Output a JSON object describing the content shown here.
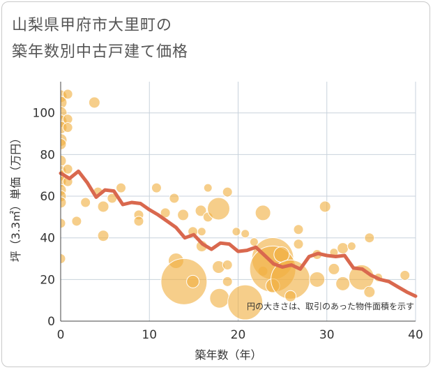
{
  "title_lines": [
    "山梨県甲府市大里町の",
    "築年数別中古戸建て価格"
  ],
  "chart_data": {
    "type": "scatter",
    "title": "山梨県甲府市大里町の築年数別中古戸建て価格",
    "xlabel": "築年数（年）",
    "ylabel": "坪（3.3㎡）単価（万円）",
    "xlim": [
      0,
      40
    ],
    "ylim": [
      0,
      115
    ],
    "xticks": [
      0,
      10,
      20,
      30,
      40
    ],
    "yticks": [
      0,
      20,
      40,
      60,
      80,
      100
    ],
    "grid": true,
    "annotation": "円の大きさは、取引のあった物件面積を示す",
    "colors": {
      "bubble": "#F0B042",
      "trend": "#D9684E",
      "grid": "#c8d2dc",
      "axis_text": "#333333"
    },
    "series": [
      {
        "kind": "bubbles",
        "points": [
          {
            "x": 0,
            "y": 108,
            "s": 9
          },
          {
            "x": 0,
            "y": 105,
            "s": 9
          },
          {
            "x": 0,
            "y": 100,
            "s": 9
          },
          {
            "x": 0,
            "y": 96,
            "s": 9
          },
          {
            "x": 0,
            "y": 93,
            "s": 9
          },
          {
            "x": 0,
            "y": 87,
            "s": 9
          },
          {
            "x": 0,
            "y": 85,
            "s": 8
          },
          {
            "x": 0,
            "y": 77,
            "s": 8
          },
          {
            "x": 0,
            "y": 72,
            "s": 8
          },
          {
            "x": 0,
            "y": 70,
            "s": 8
          },
          {
            "x": 0,
            "y": 67,
            "s": 8
          },
          {
            "x": 0,
            "y": 63,
            "s": 8
          },
          {
            "x": 0,
            "y": 60,
            "s": 8
          },
          {
            "x": 0,
            "y": 57,
            "s": 8
          },
          {
            "x": 0,
            "y": 47,
            "s": 7
          },
          {
            "x": 0,
            "y": 30,
            "s": 7
          },
          {
            "x": 0.8,
            "y": 109,
            "s": 7
          },
          {
            "x": 0.8,
            "y": 97,
            "s": 7
          },
          {
            "x": 0.8,
            "y": 93,
            "s": 7
          },
          {
            "x": 0.8,
            "y": 73,
            "s": 7
          },
          {
            "x": 0.8,
            "y": 67,
            "s": 7
          },
          {
            "x": 1.8,
            "y": 48,
            "s": 7
          },
          {
            "x": 2.8,
            "y": 57,
            "s": 7
          },
          {
            "x": 3.8,
            "y": 105,
            "s": 8
          },
          {
            "x": 4.2,
            "y": 62,
            "s": 7
          },
          {
            "x": 4.8,
            "y": 55,
            "s": 8
          },
          {
            "x": 4.8,
            "y": 41,
            "s": 8
          },
          {
            "x": 5.8,
            "y": 59,
            "s": 7
          },
          {
            "x": 6.8,
            "y": 64,
            "s": 7
          },
          {
            "x": 8.8,
            "y": 51,
            "s": 7
          },
          {
            "x": 8.8,
            "y": 48,
            "s": 7
          },
          {
            "x": 10.8,
            "y": 64,
            "s": 7
          },
          {
            "x": 11.8,
            "y": 52,
            "s": 7
          },
          {
            "x": 12.8,
            "y": 59,
            "s": 7
          },
          {
            "x": 13.8,
            "y": 51,
            "s": 8
          },
          {
            "x": 13.0,
            "y": 29,
            "s": 11
          },
          {
            "x": 13.9,
            "y": 19,
            "s": 33
          },
          {
            "x": 14.9,
            "y": 19,
            "s": 9
          },
          {
            "x": 14.9,
            "y": 43,
            "s": 7
          },
          {
            "x": 15.8,
            "y": 53,
            "s": 8
          },
          {
            "x": 15.9,
            "y": 36,
            "s": 8
          },
          {
            "x": 15.9,
            "y": 43,
            "s": 6
          },
          {
            "x": 16.6,
            "y": 64,
            "s": 6
          },
          {
            "x": 16.6,
            "y": 50,
            "s": 7
          },
          {
            "x": 17.8,
            "y": 54,
            "s": 16
          },
          {
            "x": 17.8,
            "y": 26,
            "s": 9
          },
          {
            "x": 18.8,
            "y": 62,
            "s": 7
          },
          {
            "x": 18.8,
            "y": 27,
            "s": 7
          },
          {
            "x": 18.8,
            "y": 19,
            "s": 7
          },
          {
            "x": 17.9,
            "y": 11,
            "s": 14
          },
          {
            "x": 19.8,
            "y": 43,
            "s": 6
          },
          {
            "x": 20.8,
            "y": 9,
            "s": 25
          },
          {
            "x": 20.8,
            "y": 42,
            "s": 6
          },
          {
            "x": 21.8,
            "y": 38,
            "s": 6
          },
          {
            "x": 22.8,
            "y": 52,
            "s": 11
          },
          {
            "x": 22.8,
            "y": 24,
            "s": 7
          },
          {
            "x": 23.9,
            "y": 30,
            "s": 30
          },
          {
            "x": 23.9,
            "y": 25,
            "s": 33
          },
          {
            "x": 23.9,
            "y": 17,
            "s": 10
          },
          {
            "x": 24.9,
            "y": 32,
            "s": 11
          },
          {
            "x": 25.9,
            "y": 20,
            "s": 28
          },
          {
            "x": 25.9,
            "y": 12,
            "s": 8
          },
          {
            "x": 26.8,
            "y": 44,
            "s": 7
          },
          {
            "x": 26.8,
            "y": 37,
            "s": 7
          },
          {
            "x": 28.9,
            "y": 20,
            "s": 11
          },
          {
            "x": 28.9,
            "y": 32,
            "s": 7
          },
          {
            "x": 29.8,
            "y": 55,
            "s": 8
          },
          {
            "x": 30.8,
            "y": 33,
            "s": 6
          },
          {
            "x": 30.8,
            "y": 25,
            "s": 8
          },
          {
            "x": 31.8,
            "y": 35,
            "s": 8
          },
          {
            "x": 31.8,
            "y": 18,
            "s": 10
          },
          {
            "x": 32.8,
            "y": 36,
            "s": 6
          },
          {
            "x": 33.9,
            "y": 21,
            "s": 18
          },
          {
            "x": 34.8,
            "y": 40,
            "s": 7
          },
          {
            "x": 34.8,
            "y": 14,
            "s": 8
          },
          {
            "x": 35.8,
            "y": 21,
            "s": 6
          },
          {
            "x": 38.8,
            "y": 22,
            "s": 7
          }
        ]
      },
      {
        "kind": "trend",
        "x": [
          0,
          1,
          2,
          3,
          4,
          5,
          6,
          7,
          8,
          9,
          10,
          11,
          12,
          13,
          14,
          15,
          16,
          17,
          18,
          19,
          20,
          21,
          22,
          23,
          24,
          25,
          26,
          27,
          28,
          29,
          30,
          31,
          32,
          33,
          34,
          35,
          36,
          37,
          38,
          39,
          40
        ],
        "y": [
          71,
          68.5,
          72,
          66.5,
          59.5,
          63,
          62.5,
          56,
          57,
          56.5,
          53.5,
          51,
          48,
          45,
          40,
          41.5,
          37,
          34.5,
          37.5,
          37,
          33.5,
          34,
          35.5,
          31.5,
          27.5,
          26,
          27,
          25,
          31,
          32.5,
          31.5,
          31,
          31.5,
          25.5,
          25,
          22,
          20,
          19,
          16.5,
          14,
          12
        ]
      }
    ]
  }
}
